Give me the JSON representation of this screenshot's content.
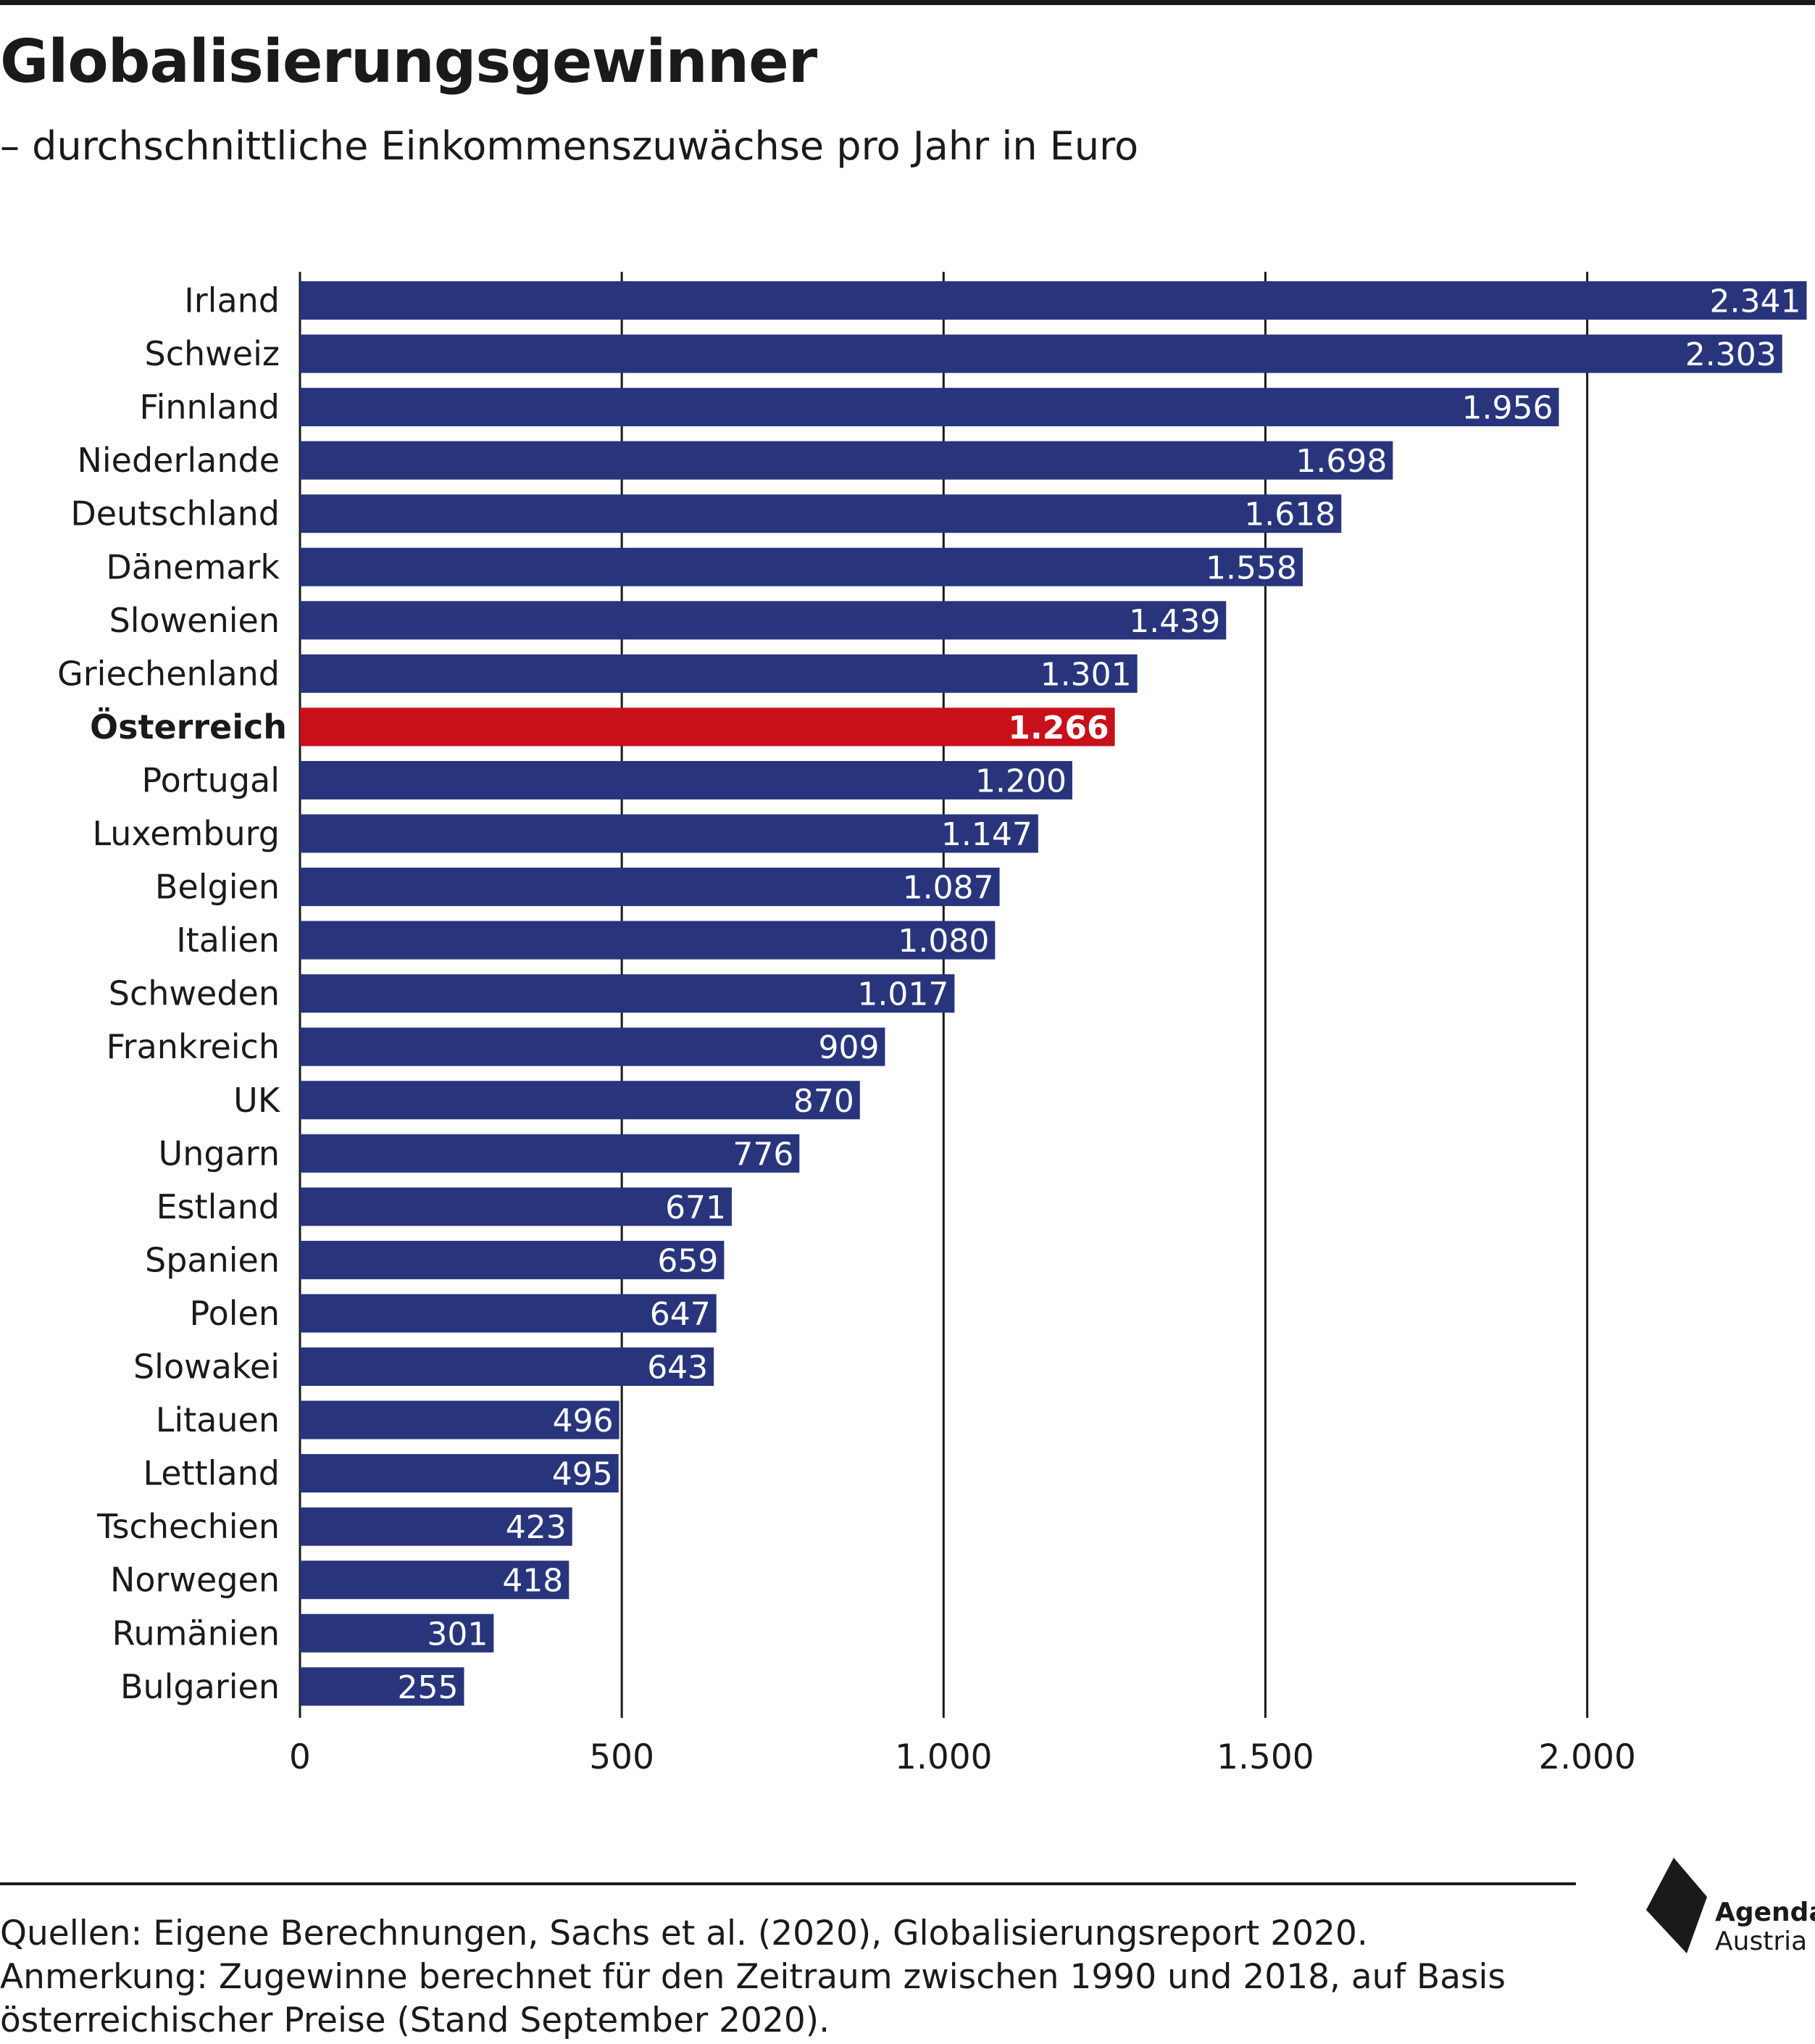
{
  "header": {
    "title": "Globalisierungsgewinner",
    "subtitle": "– durchschnittliche Einkommenszuwächse pro Jahr in Euro"
  },
  "colors": {
    "bar": "#28357d",
    "highlight": "#c8101a",
    "text": "#1a1a1a",
    "grid": "#1a1a1a"
  },
  "chart_data": {
    "type": "bar",
    "orientation": "horizontal",
    "title": "Globalisierungsgewinner",
    "subtitle": "– durchschnittliche Einkommenszuwächse pro Jahr in Euro",
    "xlim": [
      0,
      2341
    ],
    "grid": true,
    "highlight": "Österreich",
    "ticks": [
      {
        "value": 0,
        "label": "0"
      },
      {
        "value": 500,
        "label": "500"
      },
      {
        "value": 1000,
        "label": "1.000"
      },
      {
        "value": 1500,
        "label": "1.500"
      },
      {
        "value": 2000,
        "label": "2.000"
      }
    ],
    "categories": [
      "Irland",
      "Schweiz",
      "Finnland",
      "Niederlande",
      "Deutschland",
      "Dänemark",
      "Slowenien",
      "Griechenland",
      "Österreich",
      "Portugal",
      "Luxemburg",
      "Belgien",
      "Italien",
      "Schweden",
      "Frankreich",
      "UK",
      "Ungarn",
      "Estland",
      "Spanien",
      "Polen",
      "Slowakei",
      "Litauen",
      "Lettland",
      "Tschechien",
      "Norwegen",
      "Rumänien",
      "Bulgarien"
    ],
    "values": [
      2341,
      2303,
      1956,
      1698,
      1618,
      1558,
      1439,
      1301,
      1266,
      1200,
      1147,
      1087,
      1080,
      1017,
      909,
      870,
      776,
      671,
      659,
      647,
      643,
      496,
      495,
      423,
      418,
      301,
      255
    ],
    "value_labels": [
      "2.341",
      "2.303",
      "1.956",
      "1.698",
      "1.618",
      "1.558",
      "1.439",
      "1.301",
      "1.266",
      "1.200",
      "1.147",
      "1.087",
      "1.080",
      "1.017",
      "909",
      "870",
      "776",
      "671",
      "659",
      "647",
      "643",
      "496",
      "495",
      "423",
      "418",
      "301",
      "255"
    ]
  },
  "footer": {
    "sources": "Quellen: Eigene Berechnungen, Sachs et al. (2020), Globalisierungsreport 2020.",
    "note_line1": "Anmerkung: Zugewinne berechnet für den Zeitraum zwischen 1990 und 2018, auf Basis",
    "note_line2": "österreichischer Preise (Stand September 2020)."
  },
  "logo": {
    "icon": "agenda-austria-logo-icon",
    "line1": "Agenda",
    "line2": "Austria"
  }
}
